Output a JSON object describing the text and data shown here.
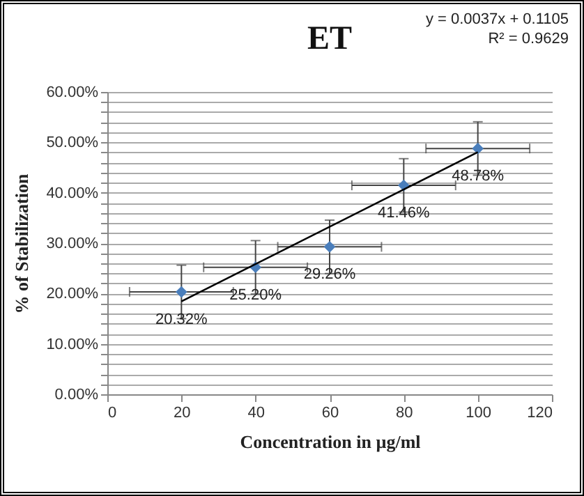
{
  "chart_data": {
    "type": "scatter",
    "title": "ET",
    "xlabel": "Concentration in µg/ml",
    "ylabel": "% of Stabilization",
    "annotations": [
      "y = 0.0037x + 0.1105",
      "R² = 0.9629"
    ],
    "x": [
      20,
      40,
      60,
      80,
      100
    ],
    "series": [
      {
        "color": "#4a7ebb",
        "marker": "diamond",
        "values": [
          20.32,
          25.2,
          29.26,
          41.46,
          48.78
        ],
        "errors": [
          5.3,
          5.3,
          5.3,
          5.3,
          5.3
        ],
        "xerrors": [
          14,
          14,
          14,
          14,
          14
        ],
        "value_labels": [
          "20.32%",
          "25.20%",
          "29.26%",
          "41.46%",
          "48.78%"
        ]
      },
      {
        "type": "line",
        "color": "#000000",
        "x": [
          20,
          100
        ],
        "values": [
          18.45,
          48.05
        ]
      }
    ],
    "xlim": [
      0,
      120
    ],
    "xticks": [
      0,
      20,
      40,
      60,
      80,
      100,
      120
    ],
    "ylim": [
      0,
      60
    ],
    "yticks": [
      {
        "value": 0,
        "label": "0.00%"
      },
      {
        "value": 2,
        "label": null
      },
      {
        "value": 4,
        "label": null
      },
      {
        "value": 6,
        "label": null
      },
      {
        "value": 8,
        "label": null
      },
      {
        "value": 10,
        "label": "10.00%"
      },
      {
        "value": 12,
        "label": null
      },
      {
        "value": 14,
        "label": null
      },
      {
        "value": 16,
        "label": null
      },
      {
        "value": 18,
        "label": null
      },
      {
        "value": 20,
        "label": "20.00%"
      },
      {
        "value": 22,
        "label": null
      },
      {
        "value": 24,
        "label": null
      },
      {
        "value": 26,
        "label": null
      },
      {
        "value": 28,
        "label": null
      },
      {
        "value": 30,
        "label": "30.00%"
      },
      {
        "value": 32,
        "label": null
      },
      {
        "value": 34,
        "label": null
      },
      {
        "value": 36,
        "label": null
      },
      {
        "value": 38,
        "label": null
      },
      {
        "value": 40,
        "label": "40.00%"
      },
      {
        "value": 42,
        "label": null
      },
      {
        "value": 44,
        "label": null
      },
      {
        "value": 46,
        "label": null
      },
      {
        "value": 48,
        "label": null
      },
      {
        "value": 50,
        "label": "50.00%"
      },
      {
        "value": 52,
        "label": null
      },
      {
        "value": 54,
        "label": null
      },
      {
        "value": 56,
        "label": null
      },
      {
        "value": 58,
        "label": null
      },
      {
        "value": 60,
        "label": "60.00%"
      }
    ],
    "grid": "y"
  }
}
